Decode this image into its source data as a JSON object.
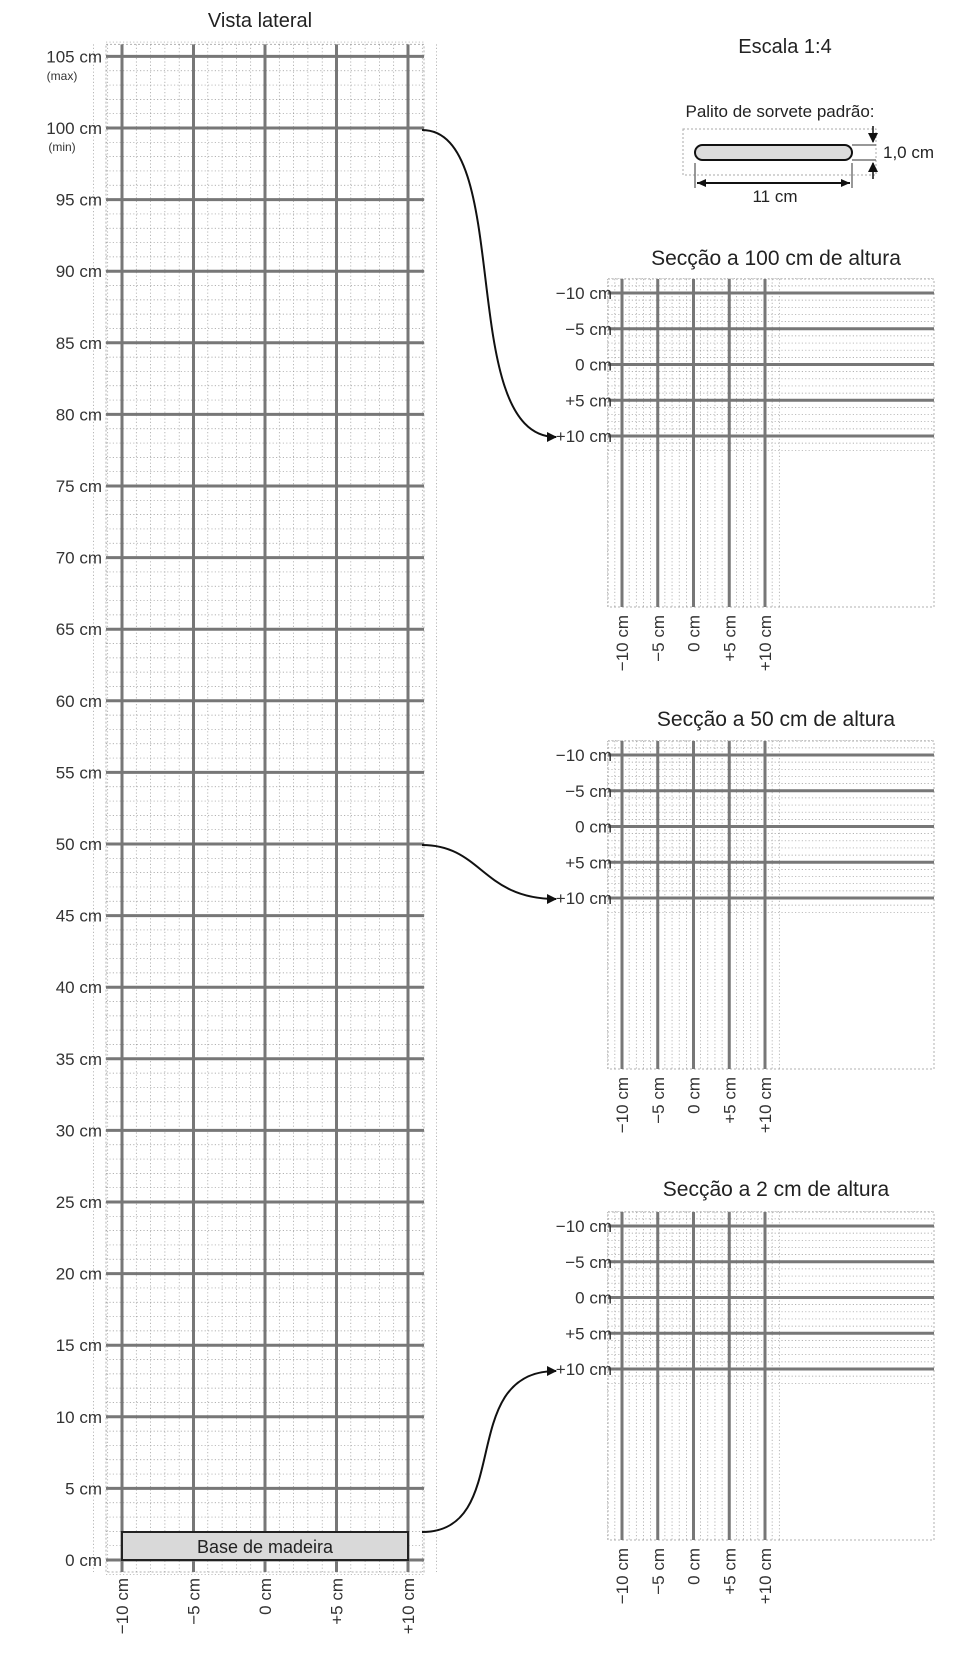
{
  "side_view": {
    "title": "Vista lateral",
    "y_labels": [
      "0 cm",
      "5 cm",
      "10 cm",
      "15 cm",
      "20 cm",
      "25 cm",
      "30 cm",
      "35 cm",
      "40 cm",
      "45 cm",
      "50 cm",
      "55 cm",
      "60 cm",
      "65 cm",
      "70 cm",
      "75 cm",
      "80 cm",
      "85 cm",
      "90 cm",
      "95 cm",
      "100 cm",
      "105 cm"
    ],
    "y_values": [
      0,
      5,
      10,
      15,
      20,
      25,
      30,
      35,
      40,
      45,
      50,
      55,
      60,
      65,
      70,
      75,
      80,
      85,
      90,
      95,
      100,
      105
    ],
    "max_note": "(max)",
    "min_note": "(min)",
    "x_labels": [
      "−10 cm",
      "−5 cm",
      "0 cm",
      "+5 cm",
      "+10 cm"
    ],
    "base_label": "Base de madeira",
    "base_height_cm": 2
  },
  "scale": {
    "label": "Escala 1:4",
    "stick_title": "Palito de sorvete padrão:",
    "stick_length": "11 cm",
    "stick_width": "1,0 cm"
  },
  "sections": [
    {
      "title": "Secção a 100 cm de altura",
      "height_cm": 100
    },
    {
      "title": "Secção a 50 cm de altura",
      "height_cm": 50
    },
    {
      "title": "Secção a 2 cm de altura",
      "height_cm": 2
    }
  ],
  "section_axis": {
    "y_labels": [
      "−10 cm",
      "−5 cm",
      "0 cm",
      "+5 cm",
      "+10 cm"
    ],
    "x_labels": [
      "−10 cm",
      "−5 cm",
      "0 cm",
      "+5 cm",
      "+10 cm"
    ]
  },
  "colors": {
    "grid_major": "#777777",
    "grid_minor": "#9a9a9a",
    "base_fill": "#d9d9d9",
    "arrow": "#111111"
  }
}
